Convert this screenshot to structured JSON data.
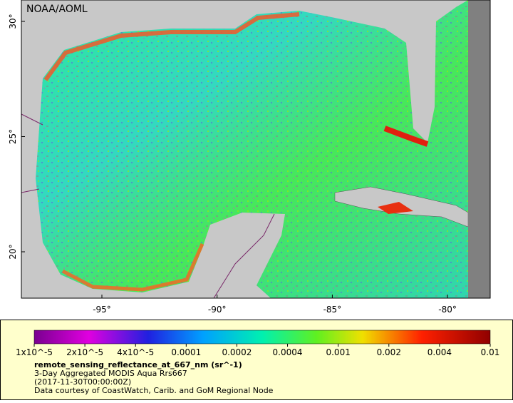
{
  "map": {
    "source": "NOAA/AOML",
    "lat_ticks": [
      "30°",
      "25°",
      "20°"
    ],
    "lon_ticks": [
      "-95°",
      "-90°",
      "-85°",
      "-80°"
    ]
  },
  "colorbar": {
    "labels": [
      "1x10^-5",
      "2x10^-5",
      "4x10^-5",
      "0.0001",
      "0.0002",
      "0.0004",
      "0.001",
      "0.002",
      "0.004",
      "0.01"
    ]
  },
  "caption": {
    "variable": "remote_sensing_reflectance_at_667_nm (sr^-1)",
    "dataset": "3-Day Aggregated MODIS Aqua Rrs667",
    "time": "(2017-11-30T00:00:00Z)",
    "credit": "Data courtesy of CoastWatch, Carib. and GoM Regional Node"
  }
}
